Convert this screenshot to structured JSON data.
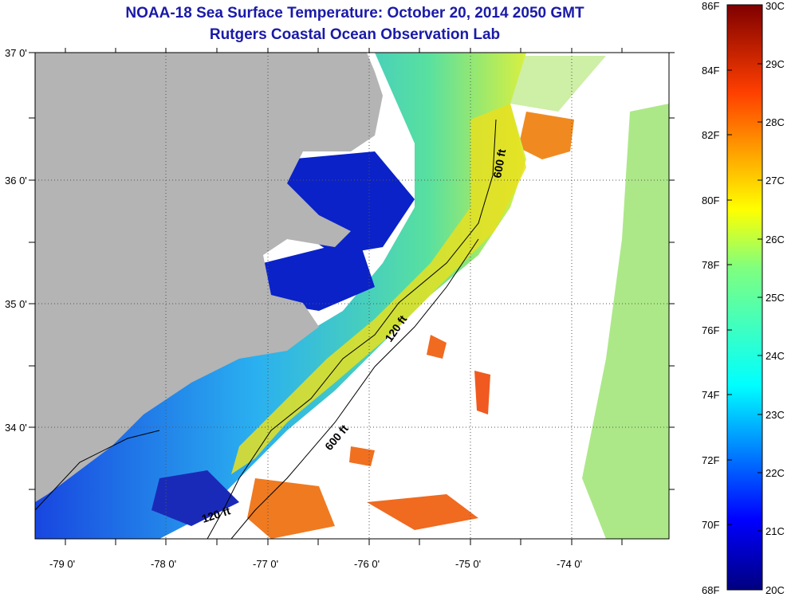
{
  "title": "NOAA-18 Sea Surface Temperature:  October 20, 2014 2050 GMT",
  "subtitle": "Rutgers Coastal Ocean Observation Lab",
  "map": {
    "lat_ticks": [
      "37 0'",
      "36 0'",
      "35 0'",
      "34 0'"
    ],
    "lon_ticks": [
      "-79 0'",
      "-78 0'",
      "-77 0'",
      "-76 0'",
      "-75 0'",
      "-74 0'"
    ],
    "isobaths": [
      "600 ft",
      "120 ft",
      "600 ft",
      "120 ft"
    ],
    "land_color": "#b4b4b4",
    "no_data_color": "#ffffff"
  },
  "colorbar": {
    "fahrenheit": [
      "86F",
      "84F",
      "82F",
      "80F",
      "78F",
      "76F",
      "74F",
      "72F",
      "70F",
      "68F"
    ],
    "celsius": [
      "30C",
      "29C",
      "28C",
      "27C",
      "26C",
      "25C",
      "24C",
      "23C",
      "22C",
      "21C",
      "20C"
    ]
  }
}
